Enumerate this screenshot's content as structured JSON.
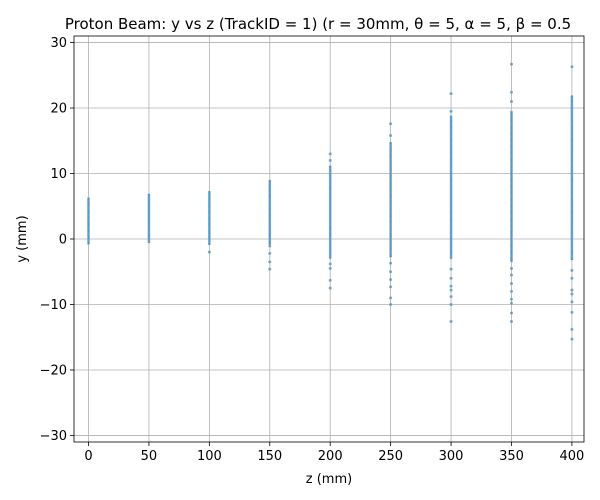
{
  "chart_data": {
    "type": "scatter",
    "title": "Proton Beam: y vs z (TrackID = 1) (r = 30mm, θ = 5, α = 5, β = 0.5",
    "xlabel": "z (mm)",
    "ylabel": "y (mm)",
    "xlim": [
      -12,
      410
    ],
    "ylim": [
      -31,
      31
    ],
    "xticks": [
      0,
      50,
      100,
      150,
      200,
      250,
      300,
      350,
      400
    ],
    "yticks": [
      -30,
      -20,
      -10,
      0,
      10,
      20,
      30
    ],
    "xtick_labels": [
      "0",
      "50",
      "100",
      "150",
      "200",
      "250",
      "300",
      "350",
      "400"
    ],
    "ytick_labels": [
      "−30",
      "−20",
      "−10",
      "0",
      "10",
      "20",
      "30"
    ],
    "grid": true,
    "marker_color": "#1f77b4",
    "series": [
      {
        "columns": [
          {
            "z": 0,
            "y_min": -1.3,
            "y_max": 6.6,
            "core_min": -0.8,
            "core_max": 6.3,
            "outliers": []
          },
          {
            "z": 50,
            "y_min": -1.0,
            "y_max": 7.2,
            "core_min": -0.6,
            "core_max": 6.9,
            "outliers": []
          },
          {
            "z": 100,
            "y_min": -2.0,
            "y_max": 7.6,
            "core_min": -0.9,
            "core_max": 7.3,
            "outliers": [
              -2.0
            ]
          },
          {
            "z": 150,
            "y_min": -4.6,
            "y_max": 9.5,
            "core_min": -1.2,
            "core_max": 9.0,
            "outliers": [
              -2.2,
              -3.5,
              -4.6
            ]
          },
          {
            "z": 200,
            "y_min": -7.5,
            "y_max": 13.0,
            "core_min": -3.0,
            "core_max": 11.2,
            "outliers": [
              -3.8,
              -4.5,
              -6.3,
              -7.5,
              12.0,
              13.0
            ]
          },
          {
            "z": 250,
            "y_min": -10.0,
            "y_max": 17.6,
            "core_min": -2.8,
            "core_max": 14.8,
            "outliers": [
              -3.7,
              -5.0,
              -6.2,
              -7.3,
              -9.0,
              -10.0,
              15.8,
              17.6
            ]
          },
          {
            "z": 300,
            "y_min": -12.6,
            "y_max": 22.2,
            "core_min": -3.0,
            "core_max": 18.8,
            "outliers": [
              -4.6,
              -6.0,
              -7.2,
              -7.8,
              -8.8,
              -10.0,
              -12.6,
              19.5,
              22.2
            ]
          },
          {
            "z": 350,
            "y_min": -12.6,
            "y_max": 26.7,
            "core_min": -3.5,
            "core_max": 19.5,
            "outliers": [
              -4.5,
              -5.5,
              -6.8,
              -8.0,
              -9.2,
              -9.8,
              -11.3,
              -12.6,
              21.0,
              22.4,
              26.7
            ]
          },
          {
            "z": 400,
            "y_min": -15.3,
            "y_max": 26.3,
            "core_min": -3.2,
            "core_max": 21.9,
            "outliers": [
              -4.8,
              -6.0,
              -7.8,
              -8.4,
              -9.6,
              -11.2,
              -13.8,
              -15.3,
              26.3
            ]
          }
        ]
      }
    ]
  }
}
